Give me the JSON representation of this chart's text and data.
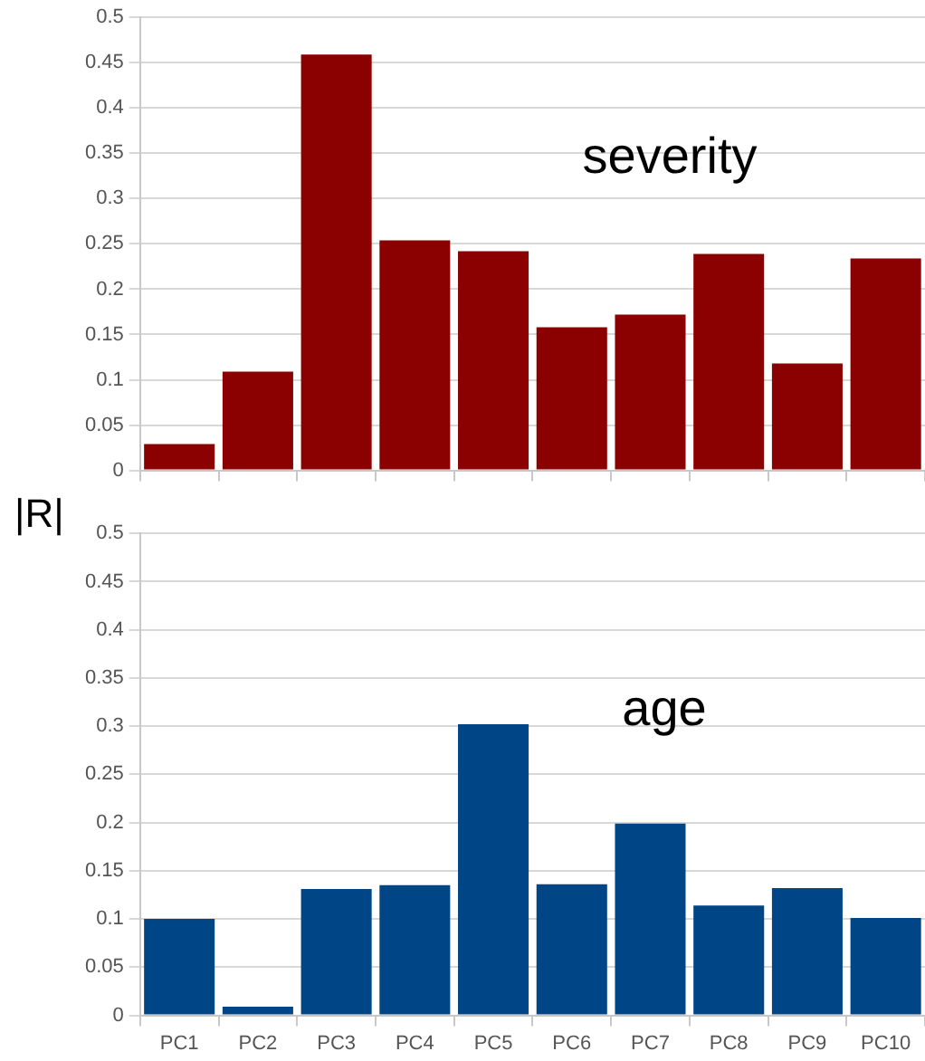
{
  "chart_data": [
    {
      "type": "bar",
      "ylabel": "|R|",
      "annotations": [
        "severity"
      ],
      "categories": [
        null,
        null,
        null,
        null,
        null,
        null,
        null,
        null,
        null,
        null
      ],
      "series": [
        {
          "color": "#8b0000",
          "values": [
            0.029,
            0.109,
            0.459,
            0.254,
            0.242,
            0.158,
            0.172,
            0.239,
            0.118,
            0.234
          ]
        }
      ],
      "ylim": [
        0,
        0.5
      ],
      "yticks": [
        0,
        0.05,
        0.1,
        0.15,
        0.2,
        0.25,
        0.3,
        0.35,
        0.4,
        0.45,
        0.5
      ],
      "grid": "y"
    },
    {
      "type": "bar",
      "annotations": [
        "age"
      ],
      "categories": [
        "PC1",
        "PC2",
        "PC3",
        "PC4",
        "PC5",
        "PC6",
        "PC7",
        "PC8",
        "PC9",
        "PC10"
      ],
      "series": [
        {
          "color": "#004586",
          "values": [
            0.1,
            0.009,
            0.131,
            0.135,
            0.302,
            0.136,
            0.199,
            0.114,
            0.132,
            0.101
          ]
        }
      ],
      "ylim": [
        0,
        0.5
      ],
      "yticks": [
        0,
        0.05,
        0.1,
        0.15,
        0.2,
        0.25,
        0.3,
        0.35,
        0.4,
        0.45,
        0.5
      ],
      "grid": "y"
    }
  ]
}
